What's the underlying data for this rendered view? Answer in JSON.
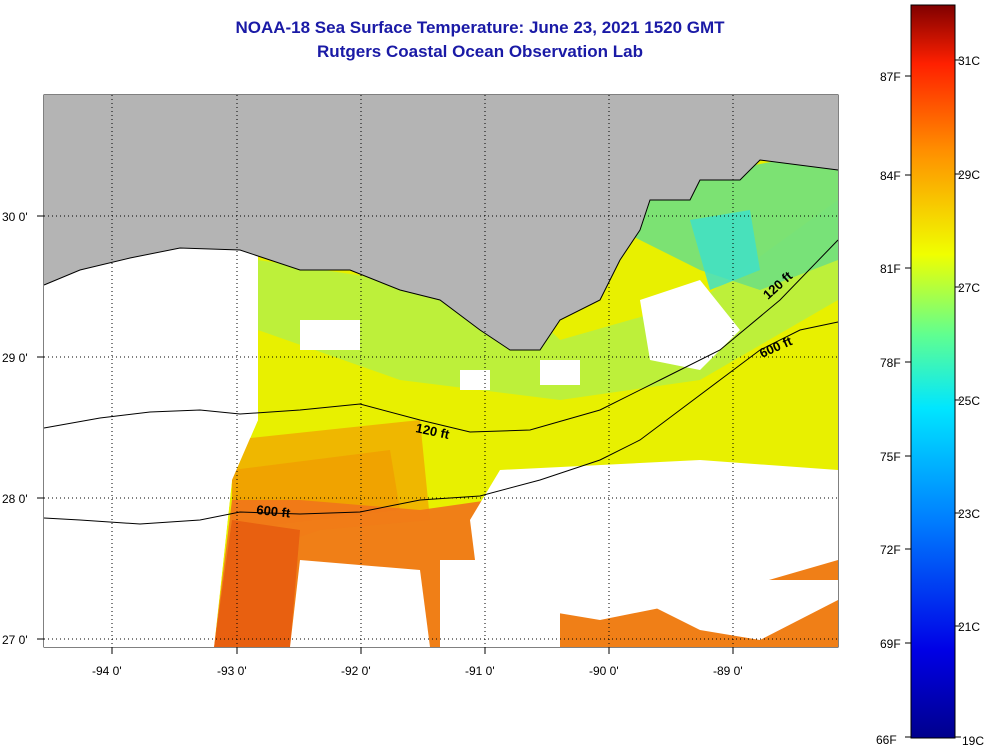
{
  "title": "NOAA-18 Sea Surface Temperature:  June 23, 2021 1520 GMT",
  "subtitle": "Rutgers Coastal Ocean Observation Lab",
  "x_ticks": [
    "-94 0'",
    "-93 0'",
    "-92 0'",
    "-91 0'",
    "-90 0'",
    "-89 0'"
  ],
  "y_ticks": [
    "30 0'",
    "29 0'",
    "28 0'",
    "27 0'"
  ],
  "contour_labels": [
    "120 ft",
    "120 ft",
    "600 ft",
    "600 ft"
  ],
  "colorbar": {
    "fahrenheit": [
      "87F",
      "84F",
      "81F",
      "78F",
      "75F",
      "72F",
      "69F",
      "66F"
    ],
    "celsius": [
      "31C",
      "29C",
      "27C",
      "25C",
      "23C",
      "21C",
      "19C"
    ]
  },
  "colors": {
    "land": "#b4b4b4",
    "title": "#1a1aa6",
    "warm": "#f07818",
    "mid": "#e8f000",
    "cool": "#40e0c8"
  }
}
